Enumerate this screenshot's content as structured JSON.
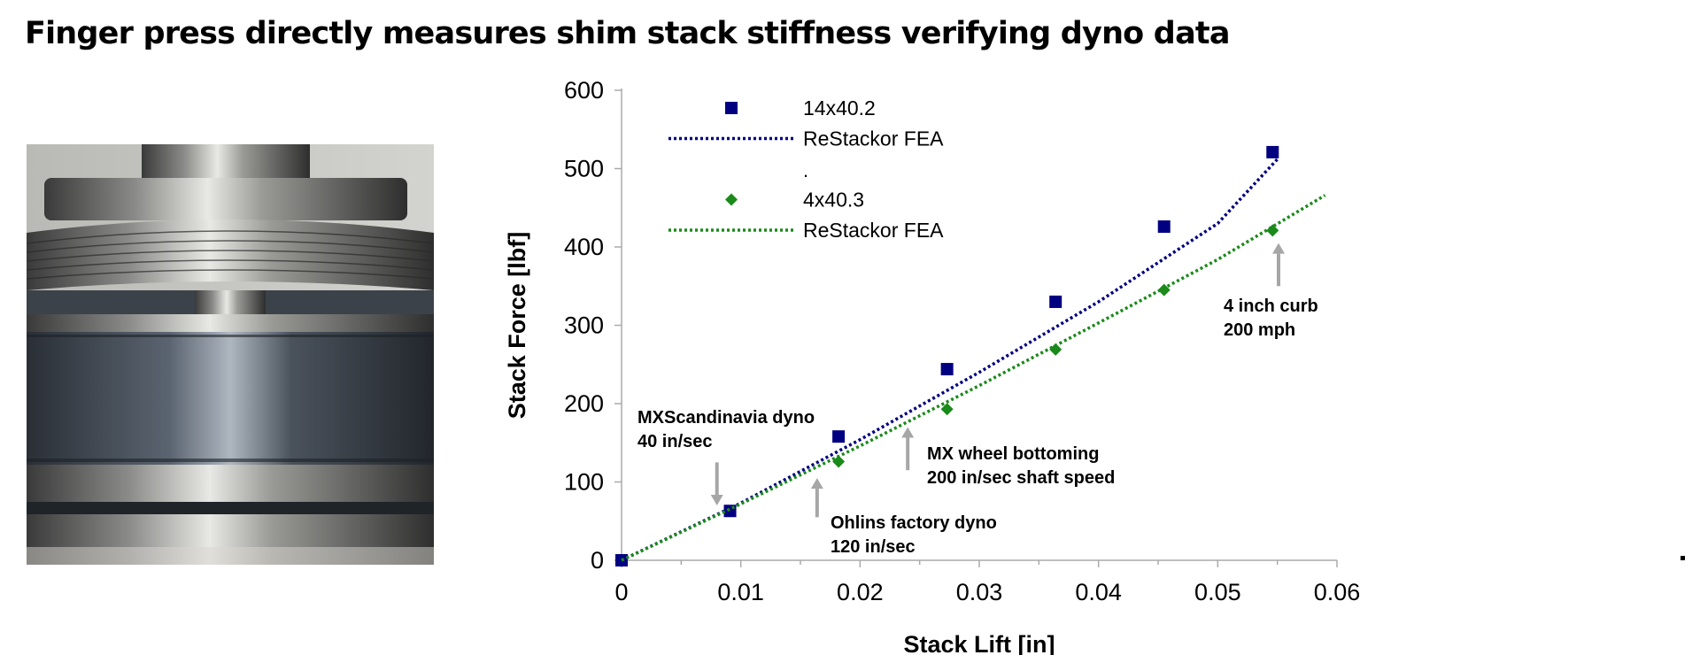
{
  "title": "Finger press directly measures shim stack stiffness verifying dyno data",
  "photo": {
    "icon": "shim-stack-photo"
  },
  "colors": {
    "series1": "#000080",
    "series2": "#1a8a1a",
    "annotation_arrow": "#a6a6a6"
  },
  "chart_data": {
    "type": "scatter",
    "xlabel": "Stack Lift [in]",
    "ylabel": "Stack Force [lbf]",
    "xlim": [
      0,
      0.06
    ],
    "ylim": [
      0,
      600
    ],
    "x_ticks": [
      {
        "value": 0,
        "label": "0"
      },
      {
        "value": 0.01,
        "label": "0.01"
      },
      {
        "value": 0.02,
        "label": "0.02"
      },
      {
        "value": 0.03,
        "label": "0.03"
      },
      {
        "value": 0.04,
        "label": "0.04"
      },
      {
        "value": 0.05,
        "label": "0.05"
      },
      {
        "value": 0.06,
        "label": "0.06"
      }
    ],
    "y_ticks": [
      {
        "value": 0,
        "label": "0"
      },
      {
        "value": 100,
        "label": "100"
      },
      {
        "value": 200,
        "label": "200"
      },
      {
        "value": 300,
        "label": "300"
      },
      {
        "value": 400,
        "label": "400"
      },
      {
        "value": 500,
        "label": "500"
      },
      {
        "value": 600,
        "label": "600"
      }
    ],
    "grid": false,
    "legend_position": "top-left",
    "legend_separator": ".",
    "series": [
      {
        "name": "14x40.2",
        "kind": "points",
        "marker": "square",
        "color": "#000080",
        "x": [
          0,
          0.0091,
          0.0182,
          0.0273,
          0.0364,
          0.0455,
          0.0546
        ],
        "y": [
          0,
          63,
          158,
          244,
          330,
          426,
          521
        ]
      },
      {
        "name": "ReStackor FEA",
        "kind": "line",
        "color": "#000080",
        "x": [
          0,
          0.01,
          0.02,
          0.03,
          0.04,
          0.05,
          0.055
        ],
        "y": [
          0,
          73,
          154,
          240,
          330,
          430,
          512
        ]
      },
      {
        "name": "4x40.3",
        "kind": "points",
        "marker": "diamond",
        "color": "#1a8a1a",
        "x": [
          0.0182,
          0.0273,
          0.0364,
          0.0455,
          0.0546
        ],
        "y": [
          126,
          193,
          269,
          345,
          421
        ]
      },
      {
        "name": "ReStackor FEA",
        "kind": "line",
        "color": "#1a8a1a",
        "x": [
          0,
          0.01,
          0.02,
          0.03,
          0.04,
          0.05,
          0.059
        ],
        "y": [
          0,
          72,
          146,
          223,
          303,
          384,
          466
        ]
      }
    ],
    "annotations": [
      {
        "lines": [
          "MXScandinavia dyno",
          "40 in/sec"
        ],
        "arrow_x": 0.008,
        "arrow_from": 125,
        "arrow_to": 70,
        "arrow_dir": "down"
      },
      {
        "lines": [
          "Ohlins factory dyno",
          "120 in/sec"
        ],
        "arrow_x": 0.0164,
        "arrow_from": 55,
        "arrow_to": 105,
        "arrow_dir": "up"
      },
      {
        "lines": [
          "MX wheel bottoming",
          "200 in/sec shaft speed"
        ],
        "arrow_x": 0.024,
        "arrow_from": 115,
        "arrow_to": 170,
        "arrow_dir": "up"
      },
      {
        "lines": [
          "4 inch curb",
          "200 mph"
        ],
        "arrow_x": 0.0551,
        "arrow_from": 350,
        "arrow_to": 405,
        "arrow_dir": "up"
      }
    ]
  }
}
